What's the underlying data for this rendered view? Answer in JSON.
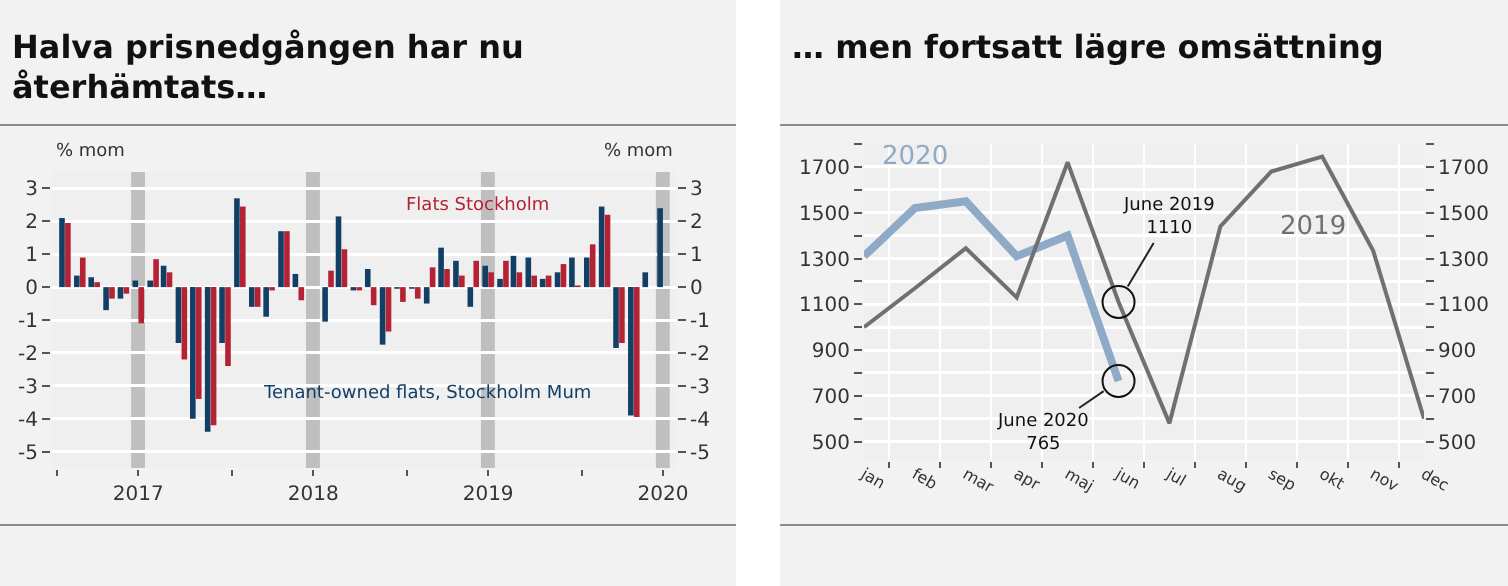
{
  "chart_data": [
    {
      "type": "bar",
      "title": "Halva prisnedgången har nu återhämtats…",
      "ylabel": "% mom",
      "y2label": "% mom",
      "x": [
        "2016-08",
        "2016-09",
        "2016-10",
        "2016-11",
        "2016-12",
        "2017-01",
        "2017-02",
        "2017-03",
        "2017-04",
        "2017-05",
        "2017-06",
        "2017-07",
        "2017-08",
        "2017-09",
        "2017-10",
        "2017-11",
        "2017-12",
        "2018-01",
        "2018-02",
        "2018-03",
        "2018-04",
        "2018-05",
        "2018-06",
        "2018-07",
        "2018-08",
        "2018-09",
        "2018-10",
        "2018-11",
        "2018-12",
        "2019-01",
        "2019-02",
        "2019-03",
        "2019-04",
        "2019-05",
        "2019-06",
        "2019-07",
        "2019-08",
        "2019-09",
        "2019-10",
        "2019-11",
        "2019-12",
        "2020-01"
      ],
      "series": [
        {
          "name": "Tenant-owned flats, Stockholm Mum",
          "color": "#123f66",
          "values": [
            2.1,
            0.35,
            0.3,
            -0.7,
            -0.35,
            0.2,
            0.2,
            0.65,
            -1.7,
            -4.0,
            -4.4,
            -1.7,
            2.7,
            -0.6,
            -0.9,
            1.7,
            0.4,
            null,
            -1.05,
            2.15,
            -0.1,
            0.55,
            -1.75,
            -0.05,
            -0.05,
            -0.5,
            1.2,
            0.8,
            -0.6,
            0.65,
            0.25,
            0.95,
            0.9,
            0.25,
            0.45,
            0.9,
            0.9,
            2.45,
            -1.85,
            -3.9,
            0.45,
            2.4
          ]
        },
        {
          "name": "Flats Stockholm",
          "color": "#b52233",
          "values": [
            1.95,
            0.9,
            0.15,
            -0.35,
            -0.2,
            -1.1,
            0.85,
            0.45,
            -2.2,
            -3.4,
            -4.2,
            -2.4,
            2.45,
            -0.6,
            -0.1,
            1.7,
            -0.4,
            null,
            0.5,
            1.15,
            -0.1,
            -0.55,
            -1.35,
            -0.45,
            -0.35,
            0.6,
            0.55,
            0.35,
            0.8,
            0.45,
            0.8,
            0.45,
            0.35,
            0.35,
            0.7,
            0.05,
            1.3,
            2.2,
            -1.7,
            -3.95,
            null,
            null
          ]
        }
      ],
      "xlim": [
        "2016-07-05",
        "2020-01-28"
      ],
      "xticks": [
        {
          "value": "2016-07-15",
          "label": null
        },
        {
          "value": "2017-01",
          "label": "2017"
        },
        {
          "value": "2017-07-15",
          "label": null
        },
        {
          "value": "2018-01",
          "label": "2018"
        },
        {
          "value": "2018-07-15",
          "label": null
        },
        {
          "value": "2019-01",
          "label": "2019"
        },
        {
          "value": "2019-07-15",
          "label": null
        },
        {
          "value": "2020-01",
          "label": "2020"
        }
      ],
      "ylim": [
        -5.5,
        3.5
      ],
      "yticks": [
        -5,
        -4,
        -3,
        -2,
        -1,
        0,
        1,
        2,
        3
      ],
      "y2lim": [
        -5.5,
        3.5
      ],
      "y2ticks": [
        -5,
        -4,
        -3,
        -2,
        -1,
        0,
        1,
        2,
        3
      ],
      "bands": [
        {
          "axis": "x",
          "from": "2016-12-17",
          "to": "2017-01-15",
          "color": "#bfbfbf"
        },
        {
          "axis": "x",
          "from": "2017-12-17",
          "to": "2018-01-15",
          "color": "#bfbfbf"
        },
        {
          "axis": "x",
          "from": "2018-12-17",
          "to": "2019-01-15",
          "color": "#bfbfbf"
        },
        {
          "axis": "x",
          "from": "2019-12-17",
          "to": "2020-01-15",
          "color": "#bfbfbf"
        }
      ],
      "grid": "y",
      "legend": false
    },
    {
      "type": "line",
      "title": "… men fortsatt lägre omsättning",
      "categories": [
        "jan",
        "feb",
        "mar",
        "apr",
        "maj",
        "jun",
        "jul",
        "aug",
        "sep",
        "okt",
        "nov",
        "dec"
      ],
      "series": [
        {
          "name": "2020",
          "color": "#8eaac6",
          "values": [
            1310,
            1520,
            1550,
            1310,
            1400,
            765,
            null,
            null,
            null,
            null,
            null,
            null
          ]
        },
        {
          "name": "2019",
          "color": "#707070",
          "values": [
            1000,
            1170,
            1345,
            1130,
            1720,
            1110,
            580,
            1440,
            1680,
            1745,
            1335,
            600
          ]
        }
      ],
      "ylim": [
        420,
        1800
      ],
      "yticks": [
        500,
        {
          "value": 600,
          "label": null
        },
        700,
        {
          "value": 800,
          "label": null
        },
        900,
        {
          "value": 1000,
          "label": null
        },
        1100,
        {
          "value": 1200,
          "label": null
        },
        1300,
        {
          "value": 1400,
          "label": null
        },
        1500,
        {
          "value": 1600,
          "label": null
        },
        1700,
        {
          "value": 1800,
          "label": null
        }
      ],
      "y2lim": [
        420,
        1800
      ],
      "y2ticks": [
        500,
        {
          "value": 600,
          "label": null
        },
        700,
        {
          "value": 800,
          "label": null
        },
        900,
        {
          "value": 1000,
          "label": null
        },
        1100,
        {
          "value": 1200,
          "label": null
        },
        1300,
        {
          "value": 1400,
          "label": null
        },
        1500,
        {
          "value": 1600,
          "label": null
        },
        1700,
        {
          "value": 1800,
          "label": null
        }
      ],
      "annotations": [
        {
          "text": "June 2019\n1110",
          "x": "jun",
          "y": 1110
        },
        {
          "text": "June 2020\n765",
          "x": "jun",
          "y": 765
        }
      ],
      "grid": true,
      "legend": false,
      "marker": "none",
      "line_style": "solid"
    }
  ]
}
